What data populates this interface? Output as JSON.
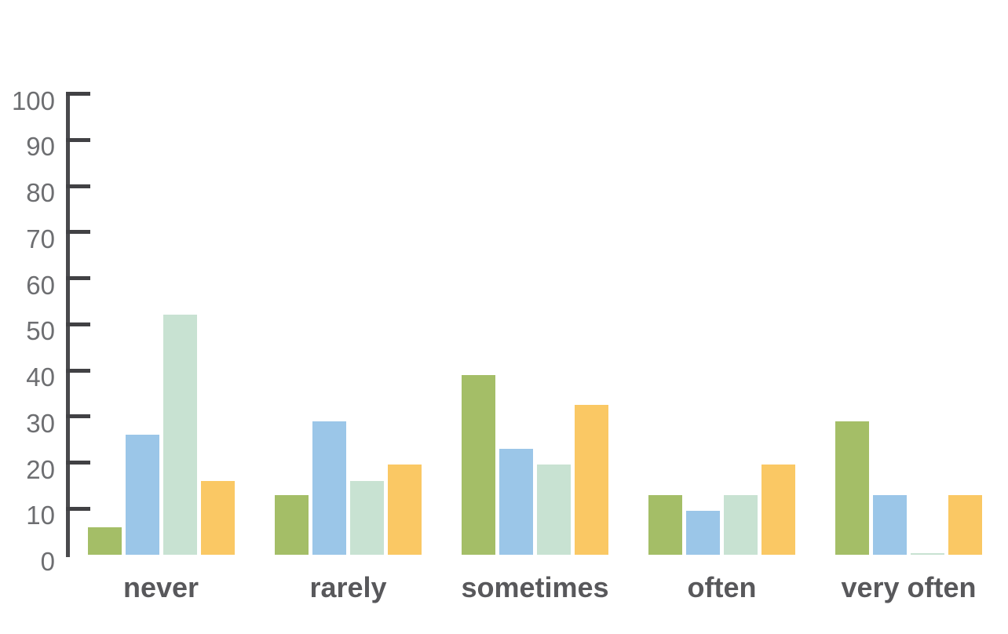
{
  "chart_data": {
    "type": "bar",
    "title": "",
    "xlabel": "",
    "ylabel": "",
    "categories": [
      "never",
      "rarely",
      "sometimes",
      "often",
      "very often"
    ],
    "series": [
      {
        "name": "green",
        "color": "#a4be67",
        "values": [
          6,
          13,
          39,
          13,
          29
        ]
      },
      {
        "name": "blue",
        "color": "#9bc6e8",
        "values": [
          26,
          29,
          23,
          9.5,
          13
        ]
      },
      {
        "name": "mint",
        "color": "#c8e2d2",
        "values": [
          52,
          16,
          19.5,
          13,
          0.3
        ]
      },
      {
        "name": "orange",
        "color": "#fac864",
        "values": [
          16,
          19.5,
          32.5,
          19.5,
          13
        ]
      }
    ],
    "ylim": [
      0,
      100
    ],
    "yticks": [
      0,
      10,
      20,
      30,
      40,
      50,
      60,
      70,
      80,
      90,
      100
    ],
    "grid": false,
    "legend_position": "none"
  },
  "colors": {
    "background": "#ffffff",
    "axis_line": "#4a4a4d",
    "tick": "#414144",
    "y_tick_label": "#6d6e71",
    "x_category_label": "#58585b"
  }
}
